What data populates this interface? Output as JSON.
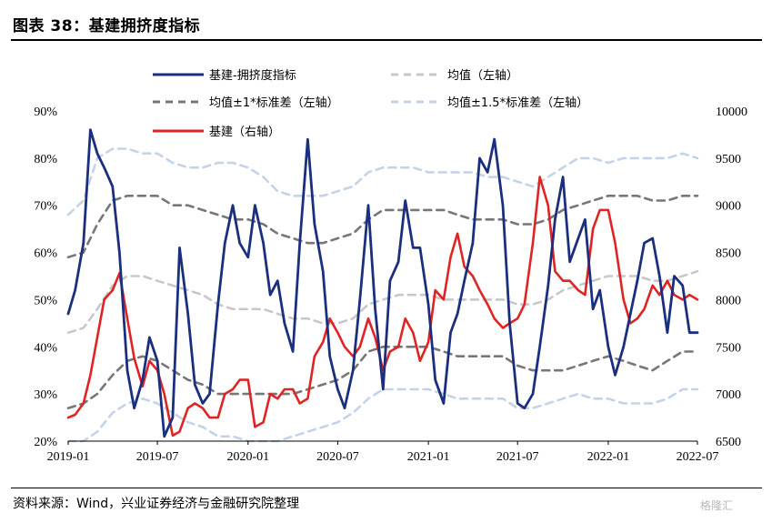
{
  "title": "图表 38：基建拥挤度指标",
  "source": "资料来源：Wind，兴业证券经济与金融研究院整理",
  "watermark": "格隆汇",
  "colors": {
    "main": "#1a2f7e",
    "mean": "#c8c8c8",
    "band1": "#777777",
    "band15": "#c5d3ea",
    "right": "#e02424"
  },
  "chart_data": {
    "type": "line",
    "title": "",
    "y_left": {
      "ticks": [
        "20%",
        "30%",
        "40%",
        "50%",
        "60%",
        "70%",
        "80%",
        "90%"
      ],
      "ylim": [
        0.2,
        0.9
      ]
    },
    "y_right": {
      "ticks": [
        "6500",
        "7000",
        "7500",
        "8000",
        "8500",
        "9000",
        "9500",
        "10000"
      ],
      "ylim": [
        6500,
        10000
      ]
    },
    "x_ticks": [
      "2019-01",
      "2019-07",
      "2020-01",
      "2020-07",
      "2021-01",
      "2021-07",
      "2022-01",
      "2022-07"
    ],
    "x_range": [
      "2019-01",
      "2022-07"
    ],
    "legend": [
      {
        "key": "main",
        "label": "基建-拥挤度指标",
        "style": "solid"
      },
      {
        "key": "mean",
        "label": "均值（左轴）",
        "style": "dashed"
      },
      {
        "key": "band1",
        "label": "均值±1*标准差（左轴）",
        "style": "dashed"
      },
      {
        "key": "band15",
        "label": "均值±1.5*标准差（左轴）",
        "style": "dashed"
      },
      {
        "key": "right",
        "label": "基建（右轴）",
        "style": "solid"
      }
    ],
    "series": [
      {
        "name": "基建-拥挤度指标",
        "axis": "left",
        "x": [
          "2019-01",
          "2019-01-15",
          "2019-02",
          "2019-02-15",
          "2019-03",
          "2019-03-15",
          "2019-04",
          "2019-04-15",
          "2019-05",
          "2019-05-15",
          "2019-06",
          "2019-06-15",
          "2019-07",
          "2019-07-15",
          "2019-08",
          "2019-08-15",
          "2019-09",
          "2019-09-15",
          "2019-10",
          "2019-10-15",
          "2019-11",
          "2019-11-15",
          "2019-12",
          "2019-12-15",
          "2020-01",
          "2020-01-15",
          "2020-02",
          "2020-02-15",
          "2020-03",
          "2020-03-15",
          "2020-04",
          "2020-04-15",
          "2020-05",
          "2020-05-15",
          "2020-06",
          "2020-06-15",
          "2020-07",
          "2020-07-15",
          "2020-08",
          "2020-08-15",
          "2020-09",
          "2020-09-15",
          "2020-10",
          "2020-10-15",
          "2020-11",
          "2020-11-15",
          "2020-12",
          "2020-12-15",
          "2021-01",
          "2021-01-15",
          "2021-02",
          "2021-02-15",
          "2021-03",
          "2021-03-15",
          "2021-04",
          "2021-04-15",
          "2021-05",
          "2021-05-15",
          "2021-06",
          "2021-06-15",
          "2021-07",
          "2021-07-15",
          "2021-08",
          "2021-08-15",
          "2021-09",
          "2021-09-15",
          "2021-10",
          "2021-10-15",
          "2021-11",
          "2021-11-15",
          "2021-12",
          "2021-12-15",
          "2022-01",
          "2022-01-15",
          "2022-02",
          "2022-02-15",
          "2022-03",
          "2022-03-15",
          "2022-04",
          "2022-04-15",
          "2022-05",
          "2022-05-15",
          "2022-06",
          "2022-06-15",
          "2022-07"
        ],
        "values": [
          0.47,
          0.52,
          0.62,
          0.86,
          0.81,
          0.78,
          0.74,
          0.6,
          0.35,
          0.27,
          0.33,
          0.42,
          0.37,
          0.21,
          0.25,
          0.61,
          0.47,
          0.32,
          0.28,
          0.3,
          0.49,
          0.62,
          0.7,
          0.62,
          0.59,
          0.7,
          0.62,
          0.51,
          0.54,
          0.45,
          0.39,
          0.62,
          0.84,
          0.66,
          0.56,
          0.38,
          0.31,
          0.27,
          0.35,
          0.5,
          0.7,
          0.48,
          0.31,
          0.54,
          0.58,
          0.71,
          0.61,
          0.61,
          0.49,
          0.33,
          0.28,
          0.43,
          0.47,
          0.54,
          0.62,
          0.8,
          0.77,
          0.84,
          0.7,
          0.45,
          0.28,
          0.27,
          0.3,
          0.4,
          0.53,
          0.67,
          0.76,
          0.58,
          0.63,
          0.67,
          0.48,
          0.52,
          0.4,
          0.34,
          0.4,
          0.47,
          0.54,
          0.62,
          0.63,
          0.55,
          0.43,
          0.55,
          0.53,
          0.43,
          0.43
        ]
      },
      {
        "name": "均值（左轴）",
        "axis": "left",
        "x": [
          "2019-01",
          "2019-02",
          "2019-03",
          "2019-04",
          "2019-05",
          "2019-06",
          "2019-07",
          "2019-08",
          "2019-09",
          "2019-10",
          "2019-11",
          "2019-12",
          "2020-01",
          "2020-02",
          "2020-03",
          "2020-04",
          "2020-05",
          "2020-06",
          "2020-07",
          "2020-08",
          "2020-09",
          "2020-10",
          "2020-11",
          "2020-12",
          "2021-01",
          "2021-02",
          "2021-03",
          "2021-04",
          "2021-05",
          "2021-06",
          "2021-07",
          "2021-08",
          "2021-09",
          "2021-10",
          "2021-11",
          "2021-12",
          "2022-01",
          "2022-02",
          "2022-03",
          "2022-04",
          "2022-05",
          "2022-06",
          "2022-07"
        ],
        "values": [
          0.43,
          0.44,
          0.48,
          0.53,
          0.55,
          0.55,
          0.54,
          0.53,
          0.52,
          0.51,
          0.49,
          0.48,
          0.48,
          0.48,
          0.47,
          0.46,
          0.46,
          0.45,
          0.45,
          0.46,
          0.49,
          0.5,
          0.51,
          0.51,
          0.51,
          0.5,
          0.5,
          0.5,
          0.5,
          0.5,
          0.49,
          0.49,
          0.5,
          0.52,
          0.53,
          0.54,
          0.55,
          0.55,
          0.55,
          0.54,
          0.54,
          0.55,
          0.56
        ]
      },
      {
        "name": "均值±1*标准差（左轴）上",
        "axis": "left",
        "x": [
          "2019-01",
          "2019-02",
          "2019-03",
          "2019-04",
          "2019-05",
          "2019-06",
          "2019-07",
          "2019-08",
          "2019-09",
          "2019-10",
          "2019-11",
          "2019-12",
          "2020-01",
          "2020-02",
          "2020-03",
          "2020-04",
          "2020-05",
          "2020-06",
          "2020-07",
          "2020-08",
          "2020-09",
          "2020-10",
          "2020-11",
          "2020-12",
          "2021-01",
          "2021-02",
          "2021-03",
          "2021-04",
          "2021-05",
          "2021-06",
          "2021-07",
          "2021-08",
          "2021-09",
          "2021-10",
          "2021-11",
          "2021-12",
          "2022-01",
          "2022-02",
          "2022-03",
          "2022-04",
          "2022-05",
          "2022-06",
          "2022-07"
        ],
        "values": [
          0.59,
          0.6,
          0.66,
          0.71,
          0.72,
          0.72,
          0.72,
          0.7,
          0.7,
          0.69,
          0.68,
          0.67,
          0.67,
          0.66,
          0.64,
          0.63,
          0.62,
          0.62,
          0.63,
          0.64,
          0.67,
          0.69,
          0.69,
          0.69,
          0.69,
          0.69,
          0.68,
          0.67,
          0.67,
          0.67,
          0.66,
          0.66,
          0.67,
          0.69,
          0.7,
          0.71,
          0.72,
          0.72,
          0.72,
          0.71,
          0.71,
          0.72,
          0.72
        ]
      },
      {
        "name": "均值±1*标准差（左轴）下",
        "axis": "left",
        "x": [
          "2019-01",
          "2019-02",
          "2019-03",
          "2019-04",
          "2019-05",
          "2019-06",
          "2019-07",
          "2019-08",
          "2019-09",
          "2019-10",
          "2019-11",
          "2019-12",
          "2020-01",
          "2020-02",
          "2020-03",
          "2020-04",
          "2020-05",
          "2020-06",
          "2020-07",
          "2020-08",
          "2020-09",
          "2020-10",
          "2020-11",
          "2020-12",
          "2021-01",
          "2021-02",
          "2021-03",
          "2021-04",
          "2021-05",
          "2021-06",
          "2021-07",
          "2021-08",
          "2021-09",
          "2021-10",
          "2021-11",
          "2021-12",
          "2022-01",
          "2022-02",
          "2022-03",
          "2022-04",
          "2022-05",
          "2022-06",
          "2022-07"
        ],
        "values": [
          0.27,
          0.28,
          0.3,
          0.34,
          0.37,
          0.38,
          0.37,
          0.35,
          0.33,
          0.32,
          0.3,
          0.3,
          0.3,
          0.3,
          0.3,
          0.3,
          0.31,
          0.32,
          0.33,
          0.35,
          0.39,
          0.4,
          0.4,
          0.4,
          0.4,
          0.39,
          0.38,
          0.38,
          0.38,
          0.38,
          0.36,
          0.35,
          0.35,
          0.35,
          0.36,
          0.37,
          0.38,
          0.37,
          0.36,
          0.35,
          0.37,
          0.39,
          0.39
        ]
      },
      {
        "name": "均值±1.5*标准差（左轴）上",
        "axis": "left",
        "x": [
          "2019-01",
          "2019-02",
          "2019-03",
          "2019-04",
          "2019-05",
          "2019-06",
          "2019-07",
          "2019-08",
          "2019-09",
          "2019-10",
          "2019-11",
          "2019-12",
          "2020-01",
          "2020-02",
          "2020-03",
          "2020-04",
          "2020-05",
          "2020-06",
          "2020-07",
          "2020-08",
          "2020-09",
          "2020-10",
          "2020-11",
          "2020-12",
          "2021-01",
          "2021-02",
          "2021-03",
          "2021-04",
          "2021-05",
          "2021-06",
          "2021-07",
          "2021-08",
          "2021-09",
          "2021-10",
          "2021-11",
          "2021-12",
          "2022-01",
          "2022-02",
          "2022-03",
          "2022-04",
          "2022-05",
          "2022-06",
          "2022-07"
        ],
        "values": [
          0.68,
          0.71,
          0.8,
          0.82,
          0.82,
          0.81,
          0.81,
          0.79,
          0.78,
          0.78,
          0.79,
          0.79,
          0.78,
          0.76,
          0.73,
          0.72,
          0.72,
          0.72,
          0.73,
          0.74,
          0.77,
          0.78,
          0.78,
          0.78,
          0.77,
          0.77,
          0.77,
          0.77,
          0.76,
          0.76,
          0.75,
          0.74,
          0.76,
          0.78,
          0.8,
          0.8,
          0.79,
          0.8,
          0.8,
          0.8,
          0.8,
          0.81,
          0.8
        ]
      },
      {
        "name": "均值±1.5*标准差（左轴）下",
        "axis": "left",
        "x": [
          "2019-01",
          "2019-02",
          "2019-03",
          "2019-04",
          "2019-05",
          "2019-06",
          "2019-07",
          "2019-08",
          "2019-09",
          "2019-10",
          "2019-11",
          "2019-12",
          "2020-01",
          "2020-02",
          "2020-03",
          "2020-04",
          "2020-05",
          "2020-06",
          "2020-07",
          "2020-08",
          "2020-09",
          "2020-10",
          "2020-11",
          "2020-12",
          "2021-01",
          "2021-02",
          "2021-03",
          "2021-04",
          "2021-05",
          "2021-06",
          "2021-07",
          "2021-08",
          "2021-09",
          "2021-10",
          "2021-11",
          "2021-12",
          "2022-01",
          "2022-02",
          "2022-03",
          "2022-04",
          "2022-05",
          "2022-06",
          "2022-07"
        ],
        "values": [
          0.2,
          0.2,
          0.22,
          0.26,
          0.28,
          0.29,
          0.28,
          0.26,
          0.24,
          0.23,
          0.21,
          0.21,
          0.2,
          0.2,
          0.2,
          0.21,
          0.22,
          0.23,
          0.24,
          0.26,
          0.29,
          0.31,
          0.31,
          0.31,
          0.31,
          0.3,
          0.29,
          0.29,
          0.29,
          0.29,
          0.27,
          0.27,
          0.28,
          0.29,
          0.3,
          0.29,
          0.29,
          0.28,
          0.28,
          0.28,
          0.29,
          0.31,
          0.31
        ]
      },
      {
        "name": "基建（右轴）",
        "axis": "right",
        "x": [
          "2019-01",
          "2019-01-15",
          "2019-02",
          "2019-02-15",
          "2019-03",
          "2019-03-15",
          "2019-04",
          "2019-04-15",
          "2019-05",
          "2019-05-15",
          "2019-06",
          "2019-06-15",
          "2019-07",
          "2019-07-15",
          "2019-08",
          "2019-08-15",
          "2019-09",
          "2019-09-15",
          "2019-10",
          "2019-10-15",
          "2019-11",
          "2019-11-15",
          "2019-12",
          "2019-12-15",
          "2020-01",
          "2020-01-15",
          "2020-02",
          "2020-02-15",
          "2020-03",
          "2020-03-15",
          "2020-04",
          "2020-04-15",
          "2020-05",
          "2020-05-15",
          "2020-06",
          "2020-06-15",
          "2020-07",
          "2020-07-15",
          "2020-08",
          "2020-08-15",
          "2020-09",
          "2020-09-15",
          "2020-10",
          "2020-10-15",
          "2020-11",
          "2020-11-15",
          "2020-12",
          "2020-12-15",
          "2021-01",
          "2021-01-15",
          "2021-02",
          "2021-02-15",
          "2021-03",
          "2021-03-15",
          "2021-04",
          "2021-04-15",
          "2021-05",
          "2021-05-15",
          "2021-06",
          "2021-06-15",
          "2021-07",
          "2021-07-15",
          "2021-08",
          "2021-08-15",
          "2021-09",
          "2021-09-15",
          "2021-10",
          "2021-10-15",
          "2021-11",
          "2021-11-15",
          "2021-12",
          "2021-12-15",
          "2022-01",
          "2022-01-15",
          "2022-02",
          "2022-02-15",
          "2022-03",
          "2022-03-15",
          "2022-04",
          "2022-04-15",
          "2022-05",
          "2022-05-15",
          "2022-06",
          "2022-06-15",
          "2022-07"
        ],
        "values": [
          6750,
          6780,
          6900,
          7200,
          7600,
          8000,
          8100,
          8280,
          7800,
          7380,
          7080,
          7350,
          7250,
          7000,
          6560,
          6600,
          6850,
          6900,
          6850,
          6750,
          6750,
          7000,
          7050,
          7150,
          7150,
          6650,
          6700,
          7000,
          6950,
          7050,
          7050,
          6900,
          6950,
          7400,
          7550,
          7800,
          7650,
          7500,
          7400,
          7500,
          7800,
          7600,
          7250,
          7450,
          7500,
          7800,
          7650,
          7350,
          7550,
          8100,
          8000,
          8450,
          8700,
          8350,
          8250,
          8100,
          7950,
          7800,
          7700,
          7750,
          7800,
          7950,
          8600,
          9300,
          9000,
          8300,
          8200,
          8200,
          8100,
          8050,
          8750,
          8950,
          8950,
          8600,
          8000,
          7750,
          7800,
          7900,
          8150,
          8050,
          8200,
          8050,
          8000,
          8050,
          8000
        ]
      }
    ]
  }
}
